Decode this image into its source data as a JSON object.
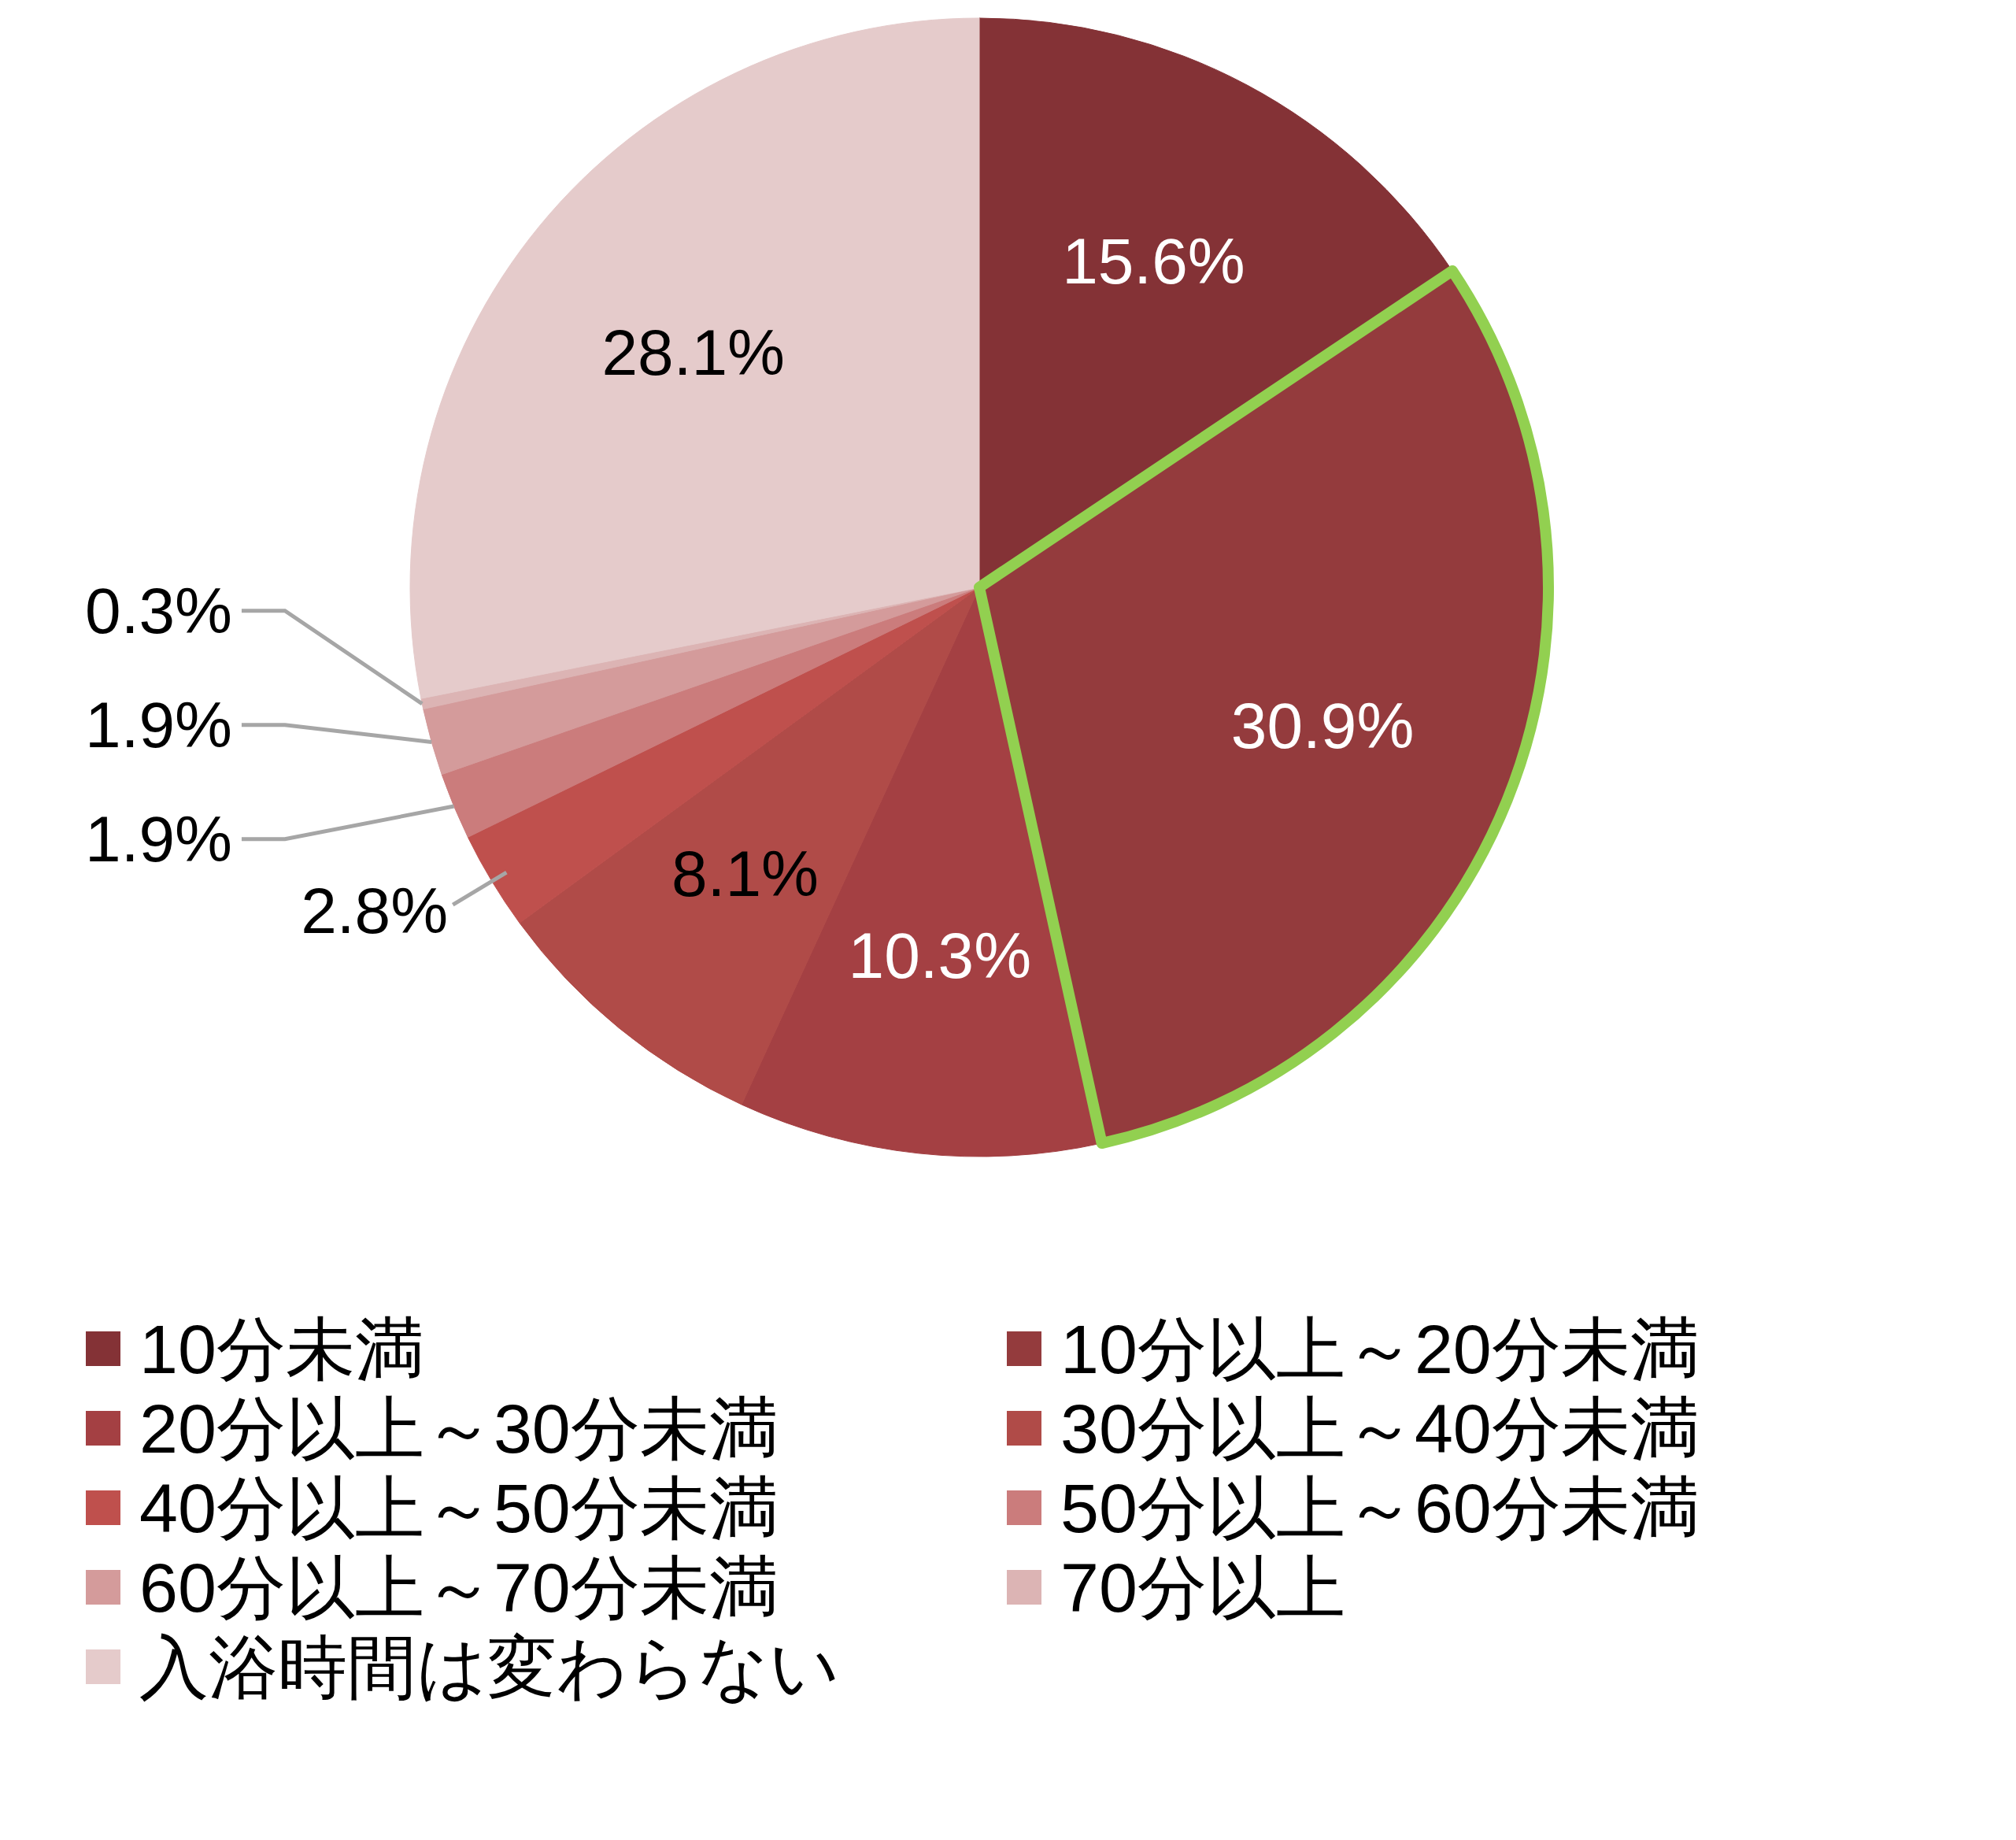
{
  "chart_data": {
    "type": "pie",
    "categories": [
      "10分未満",
      "10分以上～20分未満",
      "20分以上～30分未満",
      "30分以上～40分未満",
      "40分以上～50分未満",
      "50分以上～60分未満",
      "60分以上～70分未満",
      "70分以上",
      "入浴時間は変わらない"
    ],
    "values": [
      15.6,
      30.9,
      10.3,
      8.1,
      2.8,
      1.9,
      1.9,
      0.3,
      28.1
    ],
    "colors": [
      "#843236",
      "#943b3d",
      "#a44043",
      "#b04b48",
      "#bf504d",
      "#cb7c7c",
      "#d49b9b",
      "#dcb4b4",
      "#e5cbcb"
    ],
    "value_labels": [
      "15.6%",
      "30.9%",
      "10.3%",
      "8.1%",
      "2.8%",
      "1.9%",
      "1.9%",
      "0.3%",
      "28.1%"
    ],
    "legend": "bottom"
  }
}
